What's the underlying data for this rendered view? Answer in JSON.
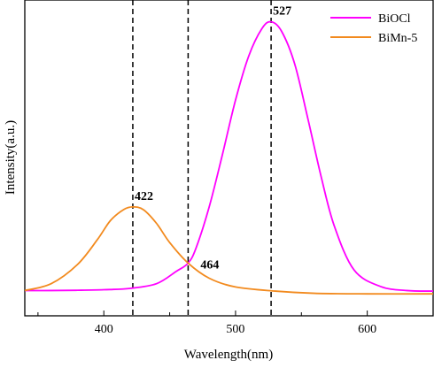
{
  "chart_data": {
    "type": "line",
    "title": "",
    "xlabel": "Wavelength(nm)",
    "ylabel": "Intensity(a.u.)",
    "xlim": [
      340,
      650
    ],
    "ylim": [
      0,
      1.0
    ],
    "xticks": [
      400,
      500,
      600
    ],
    "yticks_shown": false,
    "grid": false,
    "legend": {
      "placement": "top-right"
    },
    "series": [
      {
        "name": "BiOCl",
        "color": "#ff00ff",
        "x": [
          340,
          360,
          380,
          400,
          420,
          440,
          455,
          464,
          470,
          480,
          490,
          500,
          510,
          520,
          527,
          535,
          545,
          555,
          565,
          575,
          590,
          610,
          630,
          650
        ],
        "y": [
          0.005,
          0.005,
          0.006,
          0.008,
          0.013,
          0.03,
          0.075,
          0.105,
          0.16,
          0.31,
          0.5,
          0.7,
          0.86,
          0.96,
          0.985,
          0.95,
          0.83,
          0.63,
          0.42,
          0.24,
          0.08,
          0.02,
          0.005,
          0.003
        ]
      },
      {
        "name": "BiMn-5",
        "color": "#f28a1e",
        "x": [
          340,
          360,
          380,
          395,
          405,
          415,
          422,
          430,
          440,
          450,
          464,
          480,
          500,
          530,
          560,
          600,
          650
        ],
        "y": [
          0.005,
          0.03,
          0.1,
          0.19,
          0.26,
          0.3,
          0.31,
          0.3,
          0.25,
          0.18,
          0.105,
          0.05,
          0.018,
          0.003,
          -0.005,
          -0.007,
          -0.007
        ]
      }
    ],
    "reference_lines": [
      {
        "x": 422,
        "label": "422"
      },
      {
        "x": 464,
        "label": "464"
      },
      {
        "x": 527,
        "label": "527"
      }
    ]
  }
}
